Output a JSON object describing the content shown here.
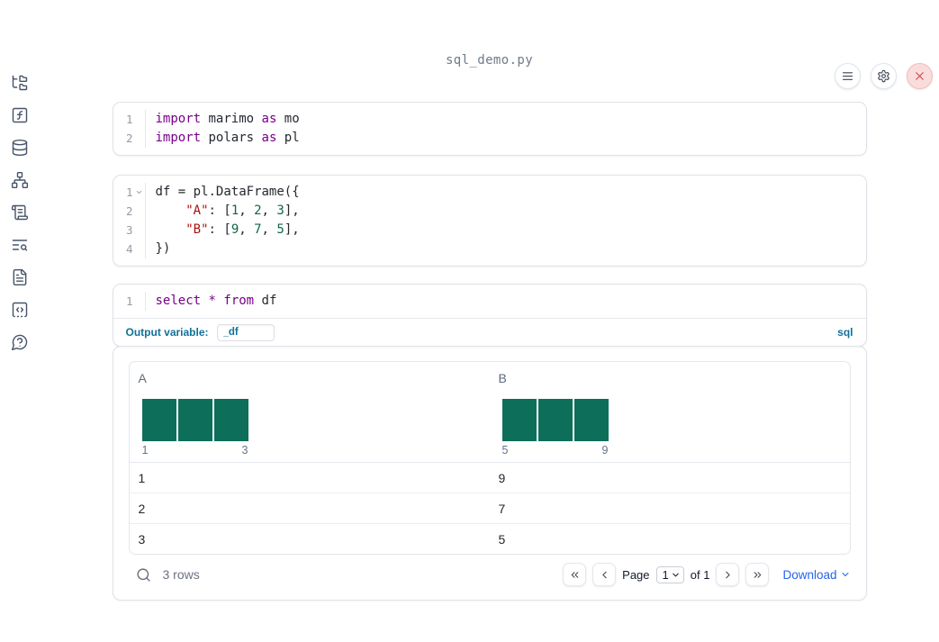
{
  "window": {
    "title": "sql_demo.py"
  },
  "colors": {
    "accent": "#0f7199",
    "link": "#2563eb",
    "histogram": "#0d6e5a",
    "close": "#cf4b49",
    "keyword": "#770088",
    "string": "#aa1111",
    "number": "#116644"
  },
  "sidebar": {
    "items": [
      {
        "name": "file-explorer",
        "icon": "folder-tree"
      },
      {
        "name": "variables",
        "icon": "function-square"
      },
      {
        "name": "datasources",
        "icon": "database"
      },
      {
        "name": "dependencies",
        "icon": "network"
      },
      {
        "name": "logs",
        "icon": "scroll-text"
      },
      {
        "name": "tracebacks",
        "icon": "text-search"
      },
      {
        "name": "documentation",
        "icon": "file-text"
      },
      {
        "name": "snippets",
        "icon": "code-square"
      },
      {
        "name": "help",
        "icon": "help-circle"
      }
    ]
  },
  "topbar": {
    "buttons": [
      {
        "name": "menu",
        "icon": "menu",
        "variant": ""
      },
      {
        "name": "settings",
        "icon": "settings",
        "variant": ""
      },
      {
        "name": "shutdown",
        "icon": "x",
        "variant": "danger"
      }
    ]
  },
  "cells": [
    {
      "type": "code",
      "lines": [
        {
          "n": "1",
          "tokens": [
            {
              "t": "k",
              "v": "import"
            },
            {
              "t": "p",
              "v": " marimo "
            },
            {
              "t": "k",
              "v": "as"
            },
            {
              "t": "p",
              "v": " mo"
            }
          ]
        },
        {
          "n": "2",
          "tokens": [
            {
              "t": "k",
              "v": "import"
            },
            {
              "t": "p",
              "v": " polars "
            },
            {
              "t": "k",
              "v": "as"
            },
            {
              "t": "p",
              "v": " pl"
            }
          ]
        }
      ]
    },
    {
      "type": "code",
      "lines": [
        {
          "n": "1",
          "fold": true,
          "tokens": [
            {
              "t": "p",
              "v": "df = pl.DataFrame({"
            }
          ]
        },
        {
          "n": "2",
          "tokens": [
            {
              "t": "p",
              "v": "    "
            },
            {
              "t": "s",
              "v": "\"A\""
            },
            {
              "t": "p",
              "v": ": ["
            },
            {
              "t": "n",
              "v": "1"
            },
            {
              "t": "p",
              "v": ", "
            },
            {
              "t": "n",
              "v": "2"
            },
            {
              "t": "p",
              "v": ", "
            },
            {
              "t": "n",
              "v": "3"
            },
            {
              "t": "p",
              "v": "],"
            }
          ]
        },
        {
          "n": "3",
          "tokens": [
            {
              "t": "p",
              "v": "    "
            },
            {
              "t": "s",
              "v": "\"B\""
            },
            {
              "t": "p",
              "v": ": ["
            },
            {
              "t": "n",
              "v": "9"
            },
            {
              "t": "p",
              "v": ", "
            },
            {
              "t": "n",
              "v": "7"
            },
            {
              "t": "p",
              "v": ", "
            },
            {
              "t": "n",
              "v": "5"
            },
            {
              "t": "p",
              "v": "],"
            }
          ]
        },
        {
          "n": "4",
          "tokens": [
            {
              "t": "p",
              "v": "})"
            }
          ]
        }
      ]
    },
    {
      "type": "sql",
      "lines": [
        {
          "n": "1",
          "tokens": [
            {
              "t": "k",
              "v": "select"
            },
            {
              "t": "p",
              "v": " "
            },
            {
              "t": "k",
              "v": "*"
            },
            {
              "t": "p",
              "v": " "
            },
            {
              "t": "k",
              "v": "from"
            },
            {
              "t": "p",
              "v": " df"
            }
          ]
        }
      ],
      "output_variable_label": "Output variable:",
      "output_variable_value": "_df",
      "language_label": "sql"
    }
  ],
  "table": {
    "columns": [
      {
        "name": "A",
        "hist": {
          "min_label": "1",
          "max_label": "3",
          "bars": [
            1,
            1,
            1
          ]
        }
      },
      {
        "name": "B",
        "hist": {
          "min_label": "5",
          "max_label": "9",
          "bars": [
            1,
            1,
            1
          ]
        }
      }
    ],
    "rows": [
      [
        "1",
        "9"
      ],
      [
        "2",
        "7"
      ],
      [
        "3",
        "5"
      ]
    ],
    "footer": {
      "row_count": "3 rows",
      "page_label": "Page",
      "page_value": "1",
      "of_label": "of 1",
      "download_label": "Download"
    }
  }
}
